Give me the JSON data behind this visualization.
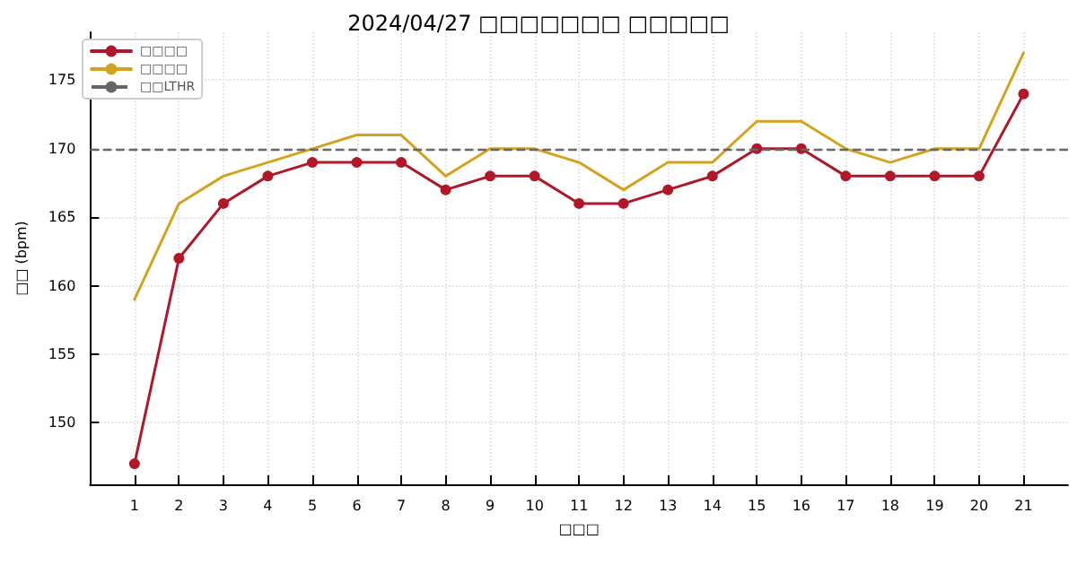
{
  "chart_data": {
    "type": "line",
    "title": "2024/04/27 □□□□□□□ □□□□□",
    "xlabel": "□□□",
    "ylabel": "□□ (bpm)",
    "x": [
      1,
      2,
      3,
      4,
      5,
      6,
      7,
      8,
      9,
      10,
      11,
      12,
      13,
      14,
      15,
      16,
      17,
      18,
      19,
      20,
      21
    ],
    "xlim": [
      0,
      22
    ],
    "xticks": [
      1,
      2,
      3,
      4,
      5,
      6,
      7,
      8,
      9,
      10,
      11,
      12,
      13,
      14,
      15,
      16,
      17,
      18,
      19,
      20,
      21
    ],
    "ylim": [
      145.5,
      178.5
    ],
    "yticks": [
      150,
      155,
      160,
      165,
      170,
      175
    ],
    "series": [
      {
        "name": "□□□□",
        "color": "#b0182a",
        "marker": "circle",
        "values": [
          147,
          162,
          166,
          168,
          169,
          169,
          169,
          167,
          168,
          168,
          166,
          166,
          167,
          168,
          170,
          170,
          168,
          168,
          168,
          168,
          174
        ]
      },
      {
        "name": "□□□□",
        "color": "#d4a21c",
        "marker": "none",
        "values": [
          159,
          166,
          168,
          169,
          170,
          171,
          171,
          168,
          170,
          170,
          169,
          167,
          169,
          169,
          172,
          172,
          170,
          169,
          170,
          170,
          177
        ]
      }
    ],
    "ref_lines": [
      {
        "axis": "y",
        "value": 170,
        "label": "□□LTHR",
        "color": "#666666",
        "line_style": "dashed"
      }
    ],
    "grid": true,
    "legend": "top left"
  }
}
